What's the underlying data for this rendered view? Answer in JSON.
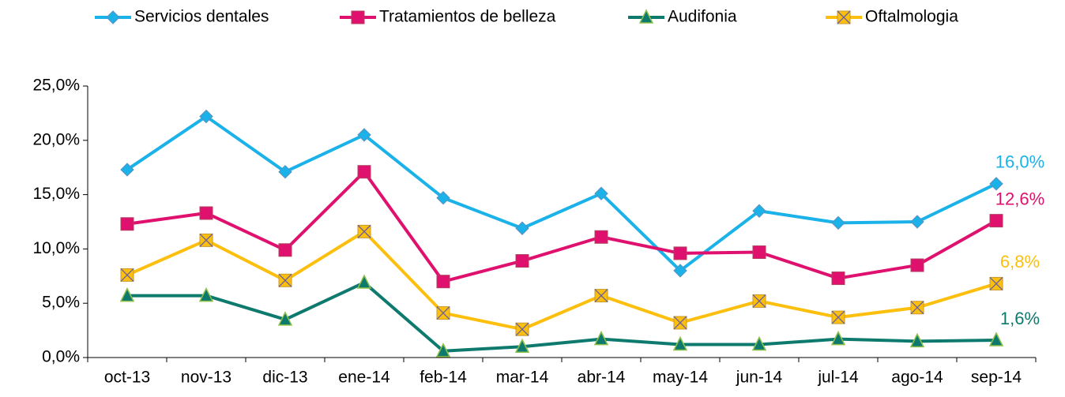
{
  "chart_data": {
    "type": "line",
    "categories": [
      "oct-13",
      "nov-13",
      "dic-13",
      "ene-14",
      "feb-14",
      "mar-14",
      "abr-14",
      "may-14",
      "jun-14",
      "jul-14",
      "ago-14",
      "sep-14"
    ],
    "series": [
      {
        "name": "Servicios dentales",
        "color": "#1ab2e8",
        "marker": "diamond",
        "values": [
          17.3,
          22.2,
          17.1,
          20.5,
          14.7,
          11.9,
          15.1,
          8.0,
          13.5,
          12.4,
          12.5,
          16.0
        ],
        "value_labels": [
          null,
          null,
          null,
          null,
          null,
          null,
          null,
          null,
          null,
          null,
          null,
          "16,0%"
        ]
      },
      {
        "name": "Tratamientos de belleza",
        "color": "#e0116e",
        "marker": "square",
        "values": [
          12.3,
          13.3,
          9.9,
          17.1,
          7.0,
          8.9,
          11.1,
          9.6,
          9.7,
          7.3,
          8.5,
          12.6
        ],
        "value_labels": [
          null,
          null,
          null,
          null,
          null,
          null,
          null,
          null,
          null,
          null,
          null,
          "12,6%"
        ]
      },
      {
        "name": "Audifonia",
        "color": "#0e7a6e",
        "marker": "triangle",
        "values": [
          5.7,
          5.7,
          3.5,
          6.9,
          0.6,
          1.0,
          1.7,
          1.2,
          1.2,
          1.7,
          1.5,
          1.6
        ],
        "value_labels": [
          null,
          null,
          null,
          null,
          null,
          null,
          null,
          null,
          null,
          null,
          null,
          "1,6%"
        ]
      },
      {
        "name": "Oftalmologia",
        "color": "#fcbf0e",
        "marker": "xbox",
        "values": [
          7.6,
          10.8,
          7.1,
          11.6,
          4.1,
          2.6,
          5.7,
          3.2,
          5.2,
          3.7,
          4.6,
          6.8
        ],
        "value_labels": [
          null,
          null,
          null,
          null,
          null,
          null,
          null,
          null,
          null,
          null,
          null,
          "6,8%"
        ]
      }
    ],
    "ylim": [
      0,
      25
    ],
    "yticks": [
      {
        "value": 0,
        "label": "0,0%"
      },
      {
        "value": 5,
        "label": "5,0%"
      },
      {
        "value": 10,
        "label": "10,0%"
      },
      {
        "value": 15,
        "label": "15,0%"
      },
      {
        "value": 20,
        "label": "20,0%"
      },
      {
        "value": 25,
        "label": "25,0%"
      }
    ],
    "legend": "top"
  }
}
